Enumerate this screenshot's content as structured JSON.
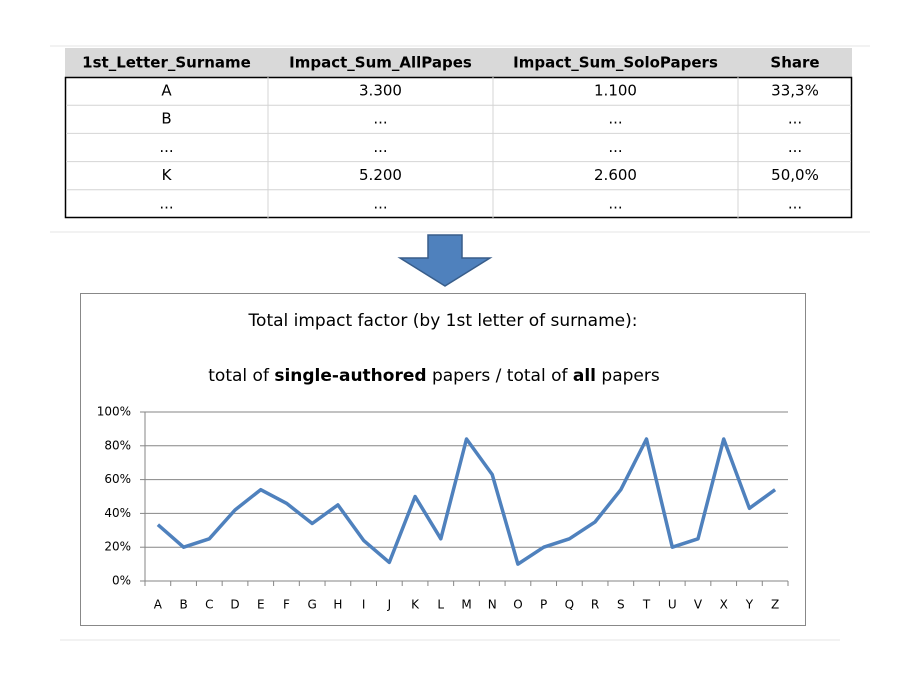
{
  "table": {
    "header": [
      "1st_Letter_Surname",
      "Impact_Sum_AllPapes",
      "Impact_Sum_SoloPapers",
      "Share"
    ],
    "rows": [
      [
        "A",
        "3.300",
        "1.100",
        "33,3%"
      ],
      [
        "B",
        "...",
        "...",
        "..."
      ],
      [
        "...",
        "...",
        "...",
        "..."
      ],
      [
        "K",
        "5.200",
        "2.600",
        "50,0%"
      ],
      [
        "...",
        "...",
        "...",
        "..."
      ]
    ]
  },
  "chart_data": {
    "type": "line",
    "title": "Total impact factor (by 1st letter of surname):",
    "subtitle": [
      "total of ",
      "single-authored",
      " papers / total of ",
      "all",
      " papers"
    ],
    "categories": [
      "A",
      "B",
      "C",
      "D",
      "E",
      "F",
      "G",
      "H",
      "I",
      "J",
      "K",
      "L",
      "M",
      "N",
      "O",
      "P",
      "Q",
      "R",
      "S",
      "T",
      "U",
      "V",
      "X",
      "Y",
      "Z"
    ],
    "values": [
      33.3,
      20,
      25,
      42,
      54,
      46,
      34,
      45,
      24,
      11,
      50,
      25,
      84,
      63,
      10,
      20,
      25,
      35,
      54,
      84,
      20,
      25,
      84,
      43,
      54
    ],
    "color": "#4f81bd",
    "ylim": [
      0,
      100
    ],
    "yticks": [
      {
        "value": 0,
        "label": "0%"
      },
      {
        "value": 20,
        "label": "20%"
      },
      {
        "value": 40,
        "label": "40%"
      },
      {
        "value": 60,
        "label": "60%"
      },
      {
        "value": 80,
        "label": "80%"
      },
      {
        "value": 100,
        "label": "100%"
      }
    ],
    "grid": true
  }
}
